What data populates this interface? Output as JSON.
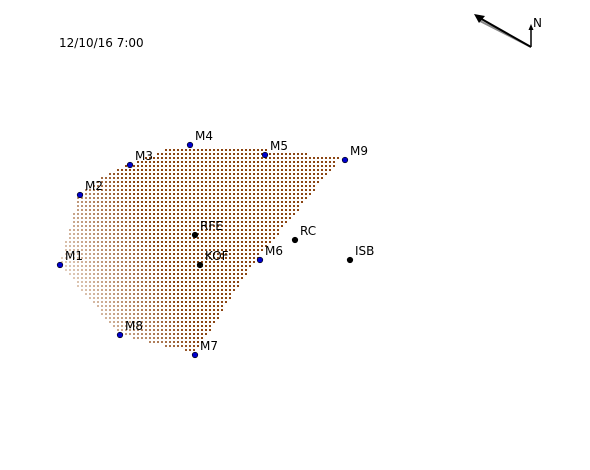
{
  "timestamp": "12/10/16 7:00",
  "north_label": "N",
  "colors": {
    "grid_dark": "#8b4513",
    "grid_light": "#f2e6da",
    "measurement_marker": "#0000cc",
    "reference_marker": "#000000",
    "text": "#000000"
  },
  "icons": {
    "north_arrow": "north-arrow-icon",
    "wind_vector": "wind-arrow-icon"
  },
  "measurement_sites": [
    {
      "label": "M1"
    },
    {
      "label": "M2"
    },
    {
      "label": "M3"
    },
    {
      "label": "M4"
    },
    {
      "label": "M5"
    },
    {
      "label": "M6"
    },
    {
      "label": "M7"
    },
    {
      "label": "M8"
    },
    {
      "label": "M9"
    }
  ],
  "reference_sites": [
    {
      "label": "RFE"
    },
    {
      "label": "KOF"
    },
    {
      "label": "RC"
    },
    {
      "label": "ISB"
    }
  ]
}
